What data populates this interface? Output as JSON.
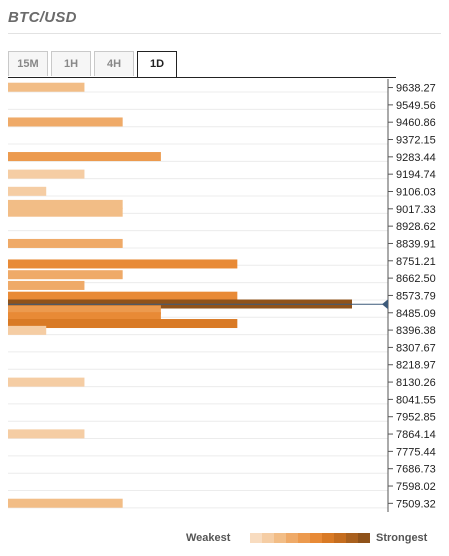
{
  "title": "BTC/USD",
  "tabs": [
    {
      "label": "15M",
      "active": false
    },
    {
      "label": "1H",
      "active": false
    },
    {
      "label": "4H",
      "active": false
    },
    {
      "label": "1D",
      "active": true
    }
  ],
  "legend": {
    "weak_label": "Weakest",
    "strong_label": "Strongest",
    "colors": [
      "#f8dcc0",
      "#f5cda4",
      "#f2bd86",
      "#efaa68",
      "#ec9a4e",
      "#e88a36",
      "#d97a25",
      "#c56d1f",
      "#a9601e",
      "#8f521a"
    ]
  },
  "chart_data": {
    "type": "bar",
    "orientation": "horizontal",
    "title": "BTC/USD",
    "current_price": 8529,
    "ylim": [
      7465,
      9682
    ],
    "price_levels": [
      9638.27,
      9549.56,
      9460.86,
      9372.15,
      9283.44,
      9194.74,
      9106.03,
      9017.33,
      8928.62,
      8839.91,
      8751.21,
      8662.5,
      8573.79,
      8485.09,
      8396.38,
      8307.67,
      8218.97,
      8130.26,
      8041.55,
      7952.85,
      7864.14,
      7775.44,
      7686.73,
      7598.02,
      7509.32
    ],
    "bars": [
      {
        "price": 9640,
        "value": 2,
        "strength": 2
      },
      {
        "price": 9462,
        "value": 3,
        "strength": 3
      },
      {
        "price": 9285,
        "value": 4,
        "strength": 4
      },
      {
        "price": 9195,
        "value": 2,
        "strength": 1
      },
      {
        "price": 9107,
        "value": 1,
        "strength": 1
      },
      {
        "price": 9040,
        "value": 3,
        "strength": 2
      },
      {
        "price": 9000,
        "value": 3,
        "strength": 2
      },
      {
        "price": 8840,
        "value": 3,
        "strength": 3
      },
      {
        "price": 8735,
        "value": 6,
        "strength": 5
      },
      {
        "price": 8680,
        "value": 3,
        "strength": 3
      },
      {
        "price": 8625,
        "value": 2,
        "strength": 3
      },
      {
        "price": 8570,
        "value": 6,
        "strength": 5
      },
      {
        "price": 8530,
        "value": 9,
        "strength": 9
      },
      {
        "price": 8500,
        "value": 4,
        "strength": 4
      },
      {
        "price": 8465,
        "value": 4,
        "strength": 5
      },
      {
        "price": 8430,
        "value": 6,
        "strength": 6
      },
      {
        "price": 8395,
        "value": 1,
        "strength": 1
      },
      {
        "price": 8130,
        "value": 2,
        "strength": 1
      },
      {
        "price": 7865,
        "value": 2,
        "strength": 1
      },
      {
        "price": 7510,
        "value": 3,
        "strength": 2
      }
    ]
  }
}
